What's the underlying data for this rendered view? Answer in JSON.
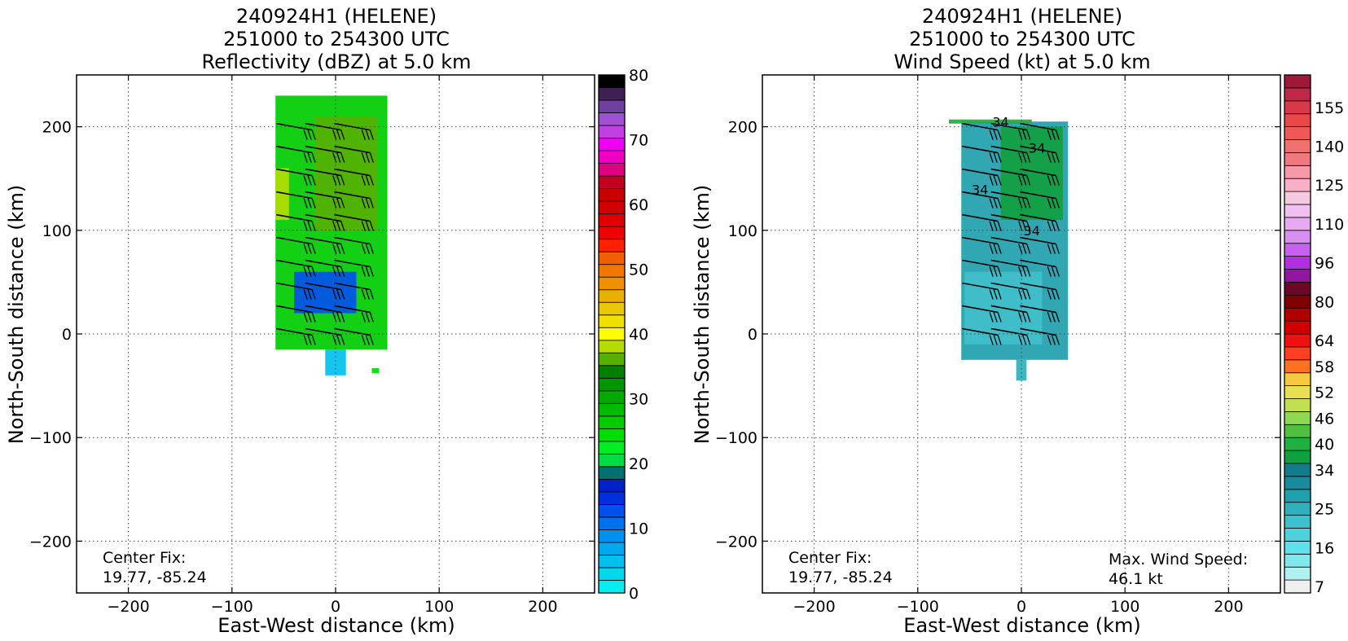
{
  "chart_data": [
    {
      "type": "heatmap",
      "title_lines": [
        "240924H1 (HELENE)",
        "251000 to 254300 UTC",
        "Reflectivity (dBZ) at 5.0 km"
      ],
      "xlabel": "East-West distance (km)",
      "ylabel": "North-South distance (km)",
      "xlim": [
        -250,
        250
      ],
      "ylim": [
        -250,
        250
      ],
      "xticks": [
        -200,
        -100,
        0,
        100,
        200
      ],
      "yticks": [
        -200,
        -100,
        0,
        100,
        200
      ],
      "xtick_labels": [
        "−200",
        "−100",
        "0",
        "100",
        "200"
      ],
      "ytick_labels": [
        "−200",
        "−100",
        "0",
        "100",
        "200"
      ],
      "grid": true,
      "annotations": [
        {
          "text_lines": [
            "Center Fix:",
            "19.77, -85.24"
          ],
          "position": "bottom-left"
        }
      ],
      "colorbar": {
        "range": [
          0,
          80
        ],
        "tick_values": [
          0,
          10,
          20,
          30,
          40,
          50,
          60,
          70,
          80
        ],
        "tick_labels": [
          "0",
          "10",
          "20",
          "30",
          "40",
          "50",
          "60",
          "70",
          "80"
        ],
        "colors": [
          "#00eeee",
          "#00d8ee",
          "#00c0ee",
          "#00a8ee",
          "#0090ee",
          "#0070ee",
          "#0050ee",
          "#0030dd",
          "#0020c8",
          "#007070",
          "#00dd44",
          "#00ee22",
          "#00dd00",
          "#00cc00",
          "#00bb00",
          "#00a800",
          "#009400",
          "#008000",
          "#56b000",
          "#b4dc00",
          "#ffff00",
          "#f0e000",
          "#e8c800",
          "#e8b000",
          "#f09000",
          "#f07800",
          "#f06000",
          "#ff2000",
          "#f00000",
          "#e00000",
          "#d00000",
          "#c80000",
          "#c00020",
          "#e00080",
          "#f000c0",
          "#f000f0",
          "#c040e0",
          "#a050d0",
          "#7040a0",
          "#402050",
          "#000000"
        ]
      },
      "field": {
        "description_free": true,
        "regions": [
          {
            "x": [
              -58,
              50
            ],
            "y": [
              -15,
              230
            ],
            "value": 27
          },
          {
            "x": [
              -20,
              40
            ],
            "y": [
              100,
              210
            ],
            "value": 37
          },
          {
            "x": [
              -58,
              -45
            ],
            "y": [
              110,
              160
            ],
            "value": 38
          },
          {
            "x": [
              -40,
              20
            ],
            "y": [
              20,
              60
            ],
            "value": 12
          },
          {
            "x": [
              -10,
              10
            ],
            "y": [
              -40,
              -15
            ],
            "value": 5
          },
          {
            "x": [
              35,
              42
            ],
            "y": [
              -38,
              -33
            ],
            "value": 24
          }
        ]
      },
      "wind_barbs": true
    },
    {
      "type": "heatmap",
      "title_lines": [
        "240924H1 (HELENE)",
        "251000 to 254300 UTC",
        "Wind Speed (kt) at 5.0 km"
      ],
      "xlabel": "East-West distance (km)",
      "ylabel": "North-South distance (km)",
      "xlim": [
        -250,
        250
      ],
      "ylim": [
        -250,
        250
      ],
      "xticks": [
        -200,
        -100,
        0,
        100,
        200
      ],
      "yticks": [
        -200,
        -100,
        0,
        100,
        200
      ],
      "xtick_labels": [
        "−200",
        "−100",
        "0",
        "100",
        "200"
      ],
      "ytick_labels": [
        "−200",
        "−100",
        "0",
        "100",
        "200"
      ],
      "grid": true,
      "annotations": [
        {
          "text_lines": [
            "Center Fix:",
            "19.77, -85.24"
          ],
          "position": "bottom-left"
        },
        {
          "text_lines": [
            "Max. Wind Speed:",
            "46.1 kt"
          ],
          "position": "bottom-right"
        }
      ],
      "contour_labels": [
        "34",
        "34",
        "34",
        "34"
      ],
      "colorbar": {
        "tick_labels": [
          "7",
          "16",
          "25",
          "34",
          "40",
          "46",
          "52",
          "58",
          "64",
          "80",
          "96",
          "110",
          "125",
          "140",
          "155"
        ],
        "tick_bins": [
          0,
          3,
          6,
          9,
          11,
          13,
          15,
          17,
          19,
          22,
          25,
          28,
          31,
          34,
          37
        ],
        "colors": [
          "#f0f0f0",
          "#b0f0f0",
          "#80e8ec",
          "#60e0e8",
          "#50d0dc",
          "#40c0cc",
          "#30b0bc",
          "#20a0ac",
          "#188c9c",
          "#107c8c",
          "#10a040",
          "#20b040",
          "#50c040",
          "#90d850",
          "#c0e050",
          "#e8e050",
          "#f8c840",
          "#ff7020",
          "#ff4020",
          "#f01010",
          "#d00000",
          "#b00000",
          "#800000",
          "#6a0828",
          "#9018a0",
          "#b030e0",
          "#c860f0",
          "#d890f0",
          "#e8a8f0",
          "#f0c0f0",
          "#f8c8e0",
          "#f8b0c8",
          "#f898a8",
          "#f07880",
          "#f07070",
          "#f05858",
          "#e84848",
          "#d83848",
          "#c02848",
          "#a01838"
        ]
      },
      "field": {
        "description_free": true,
        "regions": [
          {
            "x": [
              -58,
              45
            ],
            "y": [
              -25,
              205
            ],
            "value": 28
          },
          {
            "x": [
              -20,
              40
            ],
            "y": [
              110,
              200
            ],
            "value": 38
          },
          {
            "x": [
              -55,
              20
            ],
            "y": [
              -10,
              60
            ],
            "value": 18
          },
          {
            "x": [
              -70,
              10
            ],
            "y": [
              207,
              203
            ],
            "value": 42
          },
          {
            "x": [
              -5,
              5
            ],
            "y": [
              -45,
              -25
            ],
            "value": 22
          }
        ]
      },
      "wind_barbs": true
    }
  ]
}
